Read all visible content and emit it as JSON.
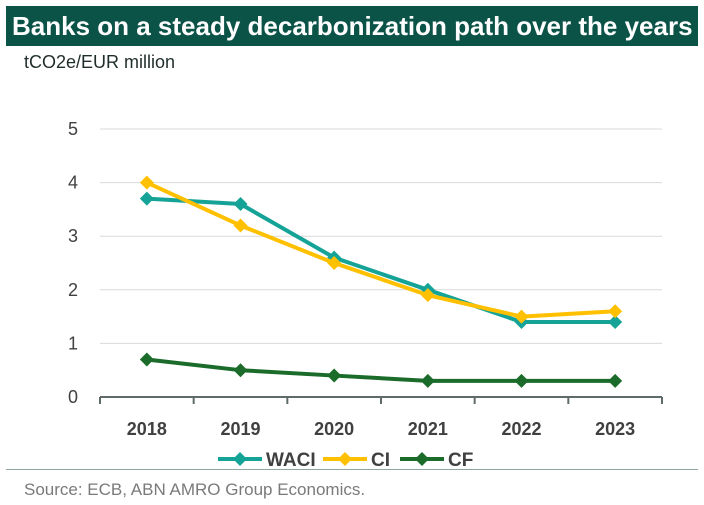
{
  "title": "Banks on a steady decarbonization path over the years",
  "unit_label": "tCO2e/EUR million",
  "source": "Source: ECB, ABN AMRO Group Economics.",
  "chart_data": {
    "type": "line",
    "title": "Banks on a steady decarbonization path over the years",
    "ylabel": "tCO2e/EUR million",
    "xlabel": "",
    "categories": [
      "2018",
      "2019",
      "2020",
      "2021",
      "2022",
      "2023"
    ],
    "ylim": [
      0,
      5
    ],
    "yticks": [
      0,
      1,
      2,
      3,
      4,
      5
    ],
    "grid": true,
    "legend_position": "bottom",
    "series": [
      {
        "name": "WACI",
        "color": "#14a396",
        "values": [
          3.7,
          3.6,
          2.6,
          2.0,
          1.4,
          1.4
        ]
      },
      {
        "name": "CI",
        "color": "#ffc000",
        "values": [
          4.0,
          3.2,
          2.5,
          1.9,
          1.5,
          1.6
        ]
      },
      {
        "name": "CF",
        "color": "#1b6b2a",
        "values": [
          0.7,
          0.5,
          0.4,
          0.3,
          0.3,
          0.3
        ]
      }
    ]
  }
}
